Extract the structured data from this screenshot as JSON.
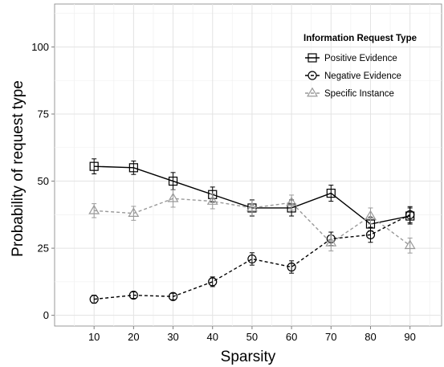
{
  "chart_data": {
    "type": "line",
    "xlabel": "Sparsity",
    "ylabel": "Probability of request type",
    "x": [
      10,
      20,
      30,
      40,
      50,
      60,
      70,
      80,
      90
    ],
    "xlim": [
      0,
      98
    ],
    "ylim": [
      -4,
      116
    ],
    "x_ticks": [
      10,
      20,
      30,
      40,
      50,
      60,
      70,
      80,
      90
    ],
    "y_ticks": [
      0,
      25,
      50,
      75,
      100
    ],
    "grid": true,
    "legend": {
      "title": "Information Request Type",
      "placement": "top-right"
    },
    "series": [
      {
        "name": "Positive Evidence",
        "color": "#000000",
        "line_style": "solid",
        "marker": "square",
        "values": [
          55.5,
          55,
          50,
          45,
          40,
          40,
          45.5,
          34,
          37
        ],
        "err": [
          2.8,
          2.5,
          3.2,
          2.8,
          3,
          3,
          3,
          2.5,
          3
        ]
      },
      {
        "name": "Negative Evidence",
        "color": "#000000",
        "line_style": "dashed",
        "marker": "circle",
        "values": [
          6,
          7.5,
          7,
          12.5,
          21,
          18,
          28.5,
          30,
          37.5
        ],
        "err": [
          1.5,
          1.2,
          1.2,
          1.8,
          2.3,
          2.3,
          2.5,
          2.8,
          3
        ]
      },
      {
        "name": "Specific Instance",
        "color": "#999999",
        "line_style": "dashed",
        "marker": "triangle",
        "values": [
          39,
          38,
          43.5,
          42.5,
          40,
          42,
          27,
          37,
          26
        ],
        "err": [
          2.6,
          2.6,
          3.2,
          2.8,
          2.8,
          2.8,
          3,
          3,
          2.8
        ]
      }
    ]
  }
}
